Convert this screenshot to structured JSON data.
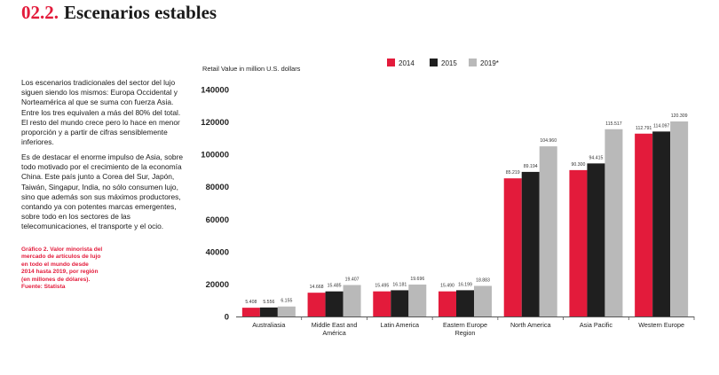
{
  "header": {
    "section_number": "02.2.",
    "title": "Escenarios estables"
  },
  "text": {
    "paragraph_1": "Los escenarios tradicionales del sector del lujo siguen siendo los mismos: Europa Occidental y Norteamérica al que se suma con fuerza Asia. Entre los tres equivalen a más del 80% del total. El resto del mundo crece pero lo hace en menor proporción y a partir de cifras sensiblemente inferiores.",
    "paragraph_2": "Es de destacar el enorme impulso de Asia, sobre todo motivado por el crecimiento de la economía China. Este país junto a Corea del Sur, Japón, Taiwán, Singapur, India, no sólo consumen lujo, sino que además son sus máximos productores, contando ya con potentes marcas emergentes, sobre todo en los sectores de las telecomunicaciones, el transporte y el ocio.",
    "caption": "Gráfico 2. Valor minorista del mercado de artículos de lujo en todo el mundo desde 2014 hasta 2019, por región (en millones de dólares). Fuente: Statista"
  },
  "colors": {
    "accent": "#e31b3b",
    "series_2014": "#e31b3b",
    "series_2015": "#1f1f1f",
    "series_2019": "#b9b9b9"
  },
  "chart_data": {
    "type": "bar",
    "title": "",
    "ylabel": "Retail Value in million U.S. dollars",
    "xlabel": "",
    "ylim": [
      0,
      140000
    ],
    "yticks": [
      0,
      20000,
      40000,
      60000,
      80000,
      100000,
      120000,
      140000
    ],
    "ytick_labels": [
      "0",
      "20000",
      "40000",
      "60000",
      "80000",
      "100000",
      "120000",
      "140000"
    ],
    "grid": false,
    "legend_position": "top-right",
    "categories": [
      [
        "Australiasia"
      ],
      [
        "Middle East and",
        "América"
      ],
      [
        "Latin America"
      ],
      [
        "Eastern Europe",
        "Region"
      ],
      [
        "North America"
      ],
      [
        "Asia Pacific"
      ],
      [
        "Western Europe"
      ]
    ],
    "series": [
      {
        "name": "2014",
        "color": "#e31b3b",
        "values": [
          5408,
          14668,
          15495,
          15490,
          85219,
          90300,
          112791
        ],
        "labels": [
          "5.408",
          "14.668",
          "15.495",
          "15.490",
          "85.219",
          "90.300",
          "112.791"
        ]
      },
      {
        "name": "2015",
        "color": "#1f1f1f",
        "values": [
          5556,
          15485,
          16181,
          16199,
          89194,
          94415,
          114097
        ],
        "labels": [
          "5.556",
          "15.485",
          "16.181",
          "16.199",
          "89.194",
          "94.415",
          "114.097"
        ]
      },
      {
        "name": "2019*",
        "color": "#b9b9b9",
        "values": [
          6155,
          19407,
          19696,
          18883,
          104960,
          115517,
          120309
        ],
        "labels": [
          "6.155",
          "19.407",
          "19.696",
          "18.883",
          "104.960",
          "115.517",
          "120.309"
        ]
      }
    ]
  }
}
